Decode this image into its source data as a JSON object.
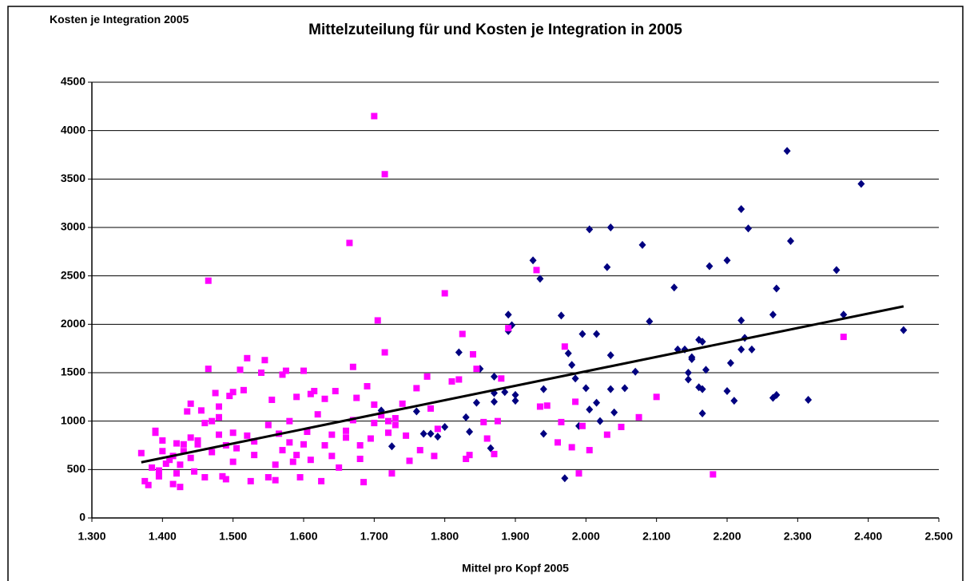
{
  "chart_data": {
    "type": "scatter",
    "title": "Mittelzuteilung für und Kosten je Integration in 2005",
    "y_label": "Kosten je Integration 2005",
    "x_label": "Mittel pro Kopf 2005",
    "xlim": [
      1.3,
      2.5
    ],
    "xticks": [
      {
        "value": 1.3,
        "label": "1.300"
      },
      {
        "value": 1.4,
        "label": "1.400"
      },
      {
        "value": 1.5,
        "label": "1.500"
      },
      {
        "value": 1.6,
        "label": "1.600"
      },
      {
        "value": 1.7,
        "label": "1.700"
      },
      {
        "value": 1.8,
        "label": "1.800"
      },
      {
        "value": 1.9,
        "label": "1.900"
      },
      {
        "value": 2.0,
        "label": "2.000"
      },
      {
        "value": 2.1,
        "label": "2.100"
      },
      {
        "value": 2.2,
        "label": "2.200"
      },
      {
        "value": 2.3,
        "label": "2.300"
      },
      {
        "value": 2.4,
        "label": "2.400"
      },
      {
        "value": 2.5,
        "label": "2.500"
      }
    ],
    "ylim": [
      0,
      4500
    ],
    "yticks": [
      0,
      500,
      1000,
      1500,
      2000,
      2500,
      3000,
      3500,
      4000,
      4500
    ],
    "grid": true,
    "series": [
      {
        "color": "#000080",
        "marker": "diamond",
        "x": [
          1.71,
          1.725,
          1.76,
          1.77,
          1.78,
          1.79,
          1.8,
          1.82,
          1.83,
          1.835,
          1.845,
          1.85,
          1.87,
          1.87,
          1.87,
          1.865,
          1.885,
          1.89,
          1.89,
          1.895,
          1.9,
          1.9,
          1.925,
          1.935,
          1.94,
          1.94,
          1.965,
          1.97,
          1.975,
          1.98,
          1.985,
          1.99,
          1.995,
          2.0,
          2.005,
          2.005,
          2.015,
          2.015,
          2.02,
          2.03,
          2.035,
          2.035,
          2.035,
          2.04,
          2.055,
          2.07,
          2.08,
          2.09,
          2.125,
          2.13,
          2.14,
          2.145,
          2.145,
          2.15,
          2.15,
          2.16,
          2.16,
          2.165,
          2.165,
          2.165,
          2.17,
          2.175,
          2.2,
          2.2,
          2.205,
          2.21,
          2.22,
          2.22,
          2.22,
          2.225,
          2.23,
          2.235,
          2.265,
          2.265,
          2.27,
          2.27,
          2.285,
          2.29,
          2.315,
          2.355,
          2.365,
          2.39,
          2.45
        ],
        "values": [
          1110,
          740,
          1100,
          870,
          870,
          840,
          940,
          1710,
          1040,
          890,
          1190,
          1540,
          1290,
          1460,
          1200,
          720,
          1300,
          2100,
          1930,
          1990,
          1270,
          1210,
          2660,
          2470,
          1330,
          870,
          2090,
          410,
          1700,
          1580,
          1440,
          950,
          1900,
          1340,
          1120,
          2980,
          1900,
          1190,
          1000,
          2590,
          3000,
          1680,
          1330,
          1090,
          1340,
          1510,
          2820,
          2030,
          2380,
          1740,
          1740,
          1500,
          1430,
          1660,
          1640,
          1840,
          1350,
          1820,
          1330,
          1080,
          1530,
          2600,
          2660,
          1310,
          1600,
          1210,
          3190,
          2040,
          1740,
          1860,
          2990,
          1740,
          2100,
          1240,
          2370,
          1270,
          3790,
          2860,
          1220,
          2560,
          2100,
          3450,
          1940
        ]
      },
      {
        "color": "#ff00ff",
        "marker": "square",
        "x": [
          1.37,
          1.375,
          1.38,
          1.385,
          1.39,
          1.39,
          1.395,
          1.395,
          1.4,
          1.4,
          1.405,
          1.41,
          1.415,
          1.415,
          1.42,
          1.42,
          1.425,
          1.425,
          1.43,
          1.43,
          1.435,
          1.44,
          1.44,
          1.445,
          1.45,
          1.455,
          1.46,
          1.46,
          1.465,
          1.465,
          1.47,
          1.475,
          1.48,
          1.48,
          1.48,
          1.485,
          1.49,
          1.495,
          1.5,
          1.5,
          1.505,
          1.51,
          1.515,
          1.52,
          1.52,
          1.525,
          1.53,
          1.54,
          1.545,
          1.55,
          1.55,
          1.555,
          1.56,
          1.565,
          1.57,
          1.575,
          1.58,
          1.585,
          1.59,
          1.595,
          1.6,
          1.605,
          1.61,
          1.615,
          1.62,
          1.625,
          1.63,
          1.64,
          1.645,
          1.65,
          1.66,
          1.665,
          1.67,
          1.675,
          1.68,
          1.685,
          1.69,
          1.695,
          1.7,
          1.7,
          1.705,
          1.71,
          1.715,
          1.715,
          1.72,
          1.725,
          1.73,
          1.74,
          1.745,
          1.75,
          1.76,
          1.765,
          1.775,
          1.78,
          1.785,
          1.79,
          1.8,
          1.81,
          1.82,
          1.825,
          1.83,
          1.835,
          1.84,
          1.845,
          1.855,
          1.86,
          1.87,
          1.875,
          1.88,
          1.89,
          1.93,
          1.935,
          1.945,
          1.96,
          1.965,
          1.97,
          1.98,
          1.985,
          1.99,
          1.995,
          2.005,
          2.03,
          2.05,
          2.075,
          2.1,
          2.18,
          2.365,
          1.57,
          1.58,
          1.59,
          1.6,
          1.61,
          1.63,
          1.64,
          1.66,
          1.67,
          1.68,
          1.7,
          1.72,
          1.73,
          1.44,
          1.47,
          1.5,
          1.53,
          1.56,
          1.45,
          1.49
        ],
        "values": [
          670,
          380,
          340,
          520,
          880,
          900,
          430,
          490,
          800,
          690,
          560,
          600,
          350,
          640,
          460,
          770,
          320,
          550,
          760,
          690,
          1100,
          1180,
          830,
          480,
          760,
          1110,
          420,
          980,
          1540,
          2450,
          1000,
          1290,
          1150,
          1040,
          860,
          430,
          400,
          1260,
          1300,
          880,
          720,
          1530,
          1320,
          1650,
          850,
          380,
          650,
          1500,
          1630,
          960,
          420,
          1220,
          390,
          870,
          1480,
          1520,
          1000,
          580,
          1250,
          420,
          1520,
          890,
          1280,
          1310,
          1070,
          380,
          1230,
          860,
          1310,
          520,
          900,
          2840,
          1560,
          1240,
          610,
          370,
          1360,
          820,
          4150,
          1170,
          2040,
          1060,
          3550,
          1710,
          880,
          460,
          1030,
          1180,
          850,
          590,
          1340,
          700,
          1460,
          1130,
          640,
          920,
          2320,
          1410,
          1430,
          1900,
          610,
          650,
          1690,
          1540,
          990,
          820,
          660,
          1000,
          1440,
          1960,
          2560,
          1150,
          1160,
          780,
          990,
          1770,
          730,
          1200,
          460,
          950,
          700,
          860,
          940,
          1040,
          1250,
          450,
          1870,
          700,
          780,
          650,
          760,
          600,
          750,
          640,
          830,
          1010,
          750,
          980,
          1000,
          960,
          620,
          680,
          580,
          790,
          550,
          800,
          750
        ]
      }
    ],
    "trendline": {
      "color": "#000000",
      "x": [
        1.37,
        2.45
      ],
      "y": [
        575,
        2185
      ]
    }
  }
}
